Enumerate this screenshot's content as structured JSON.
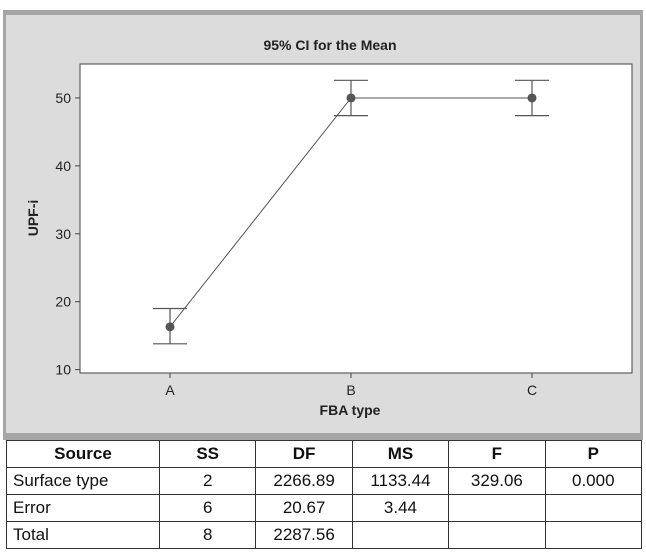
{
  "chart_data": {
    "type": "line",
    "title": "95% CI for the Mean",
    "xlabel": "FBA type",
    "ylabel": "UPF-i",
    "categories": [
      "A",
      "B",
      "C"
    ],
    "means": [
      16.3,
      50.0,
      50.0
    ],
    "ci_lower": [
      13.8,
      47.4,
      47.4
    ],
    "ci_upper": [
      19.0,
      52.6,
      52.6
    ],
    "yticks": [
      10,
      20,
      30,
      40,
      50
    ],
    "ylim": [
      9.5,
      55
    ],
    "grid": false
  },
  "table": {
    "headers": [
      "Source",
      "SS",
      "DF",
      "MS",
      "F",
      "P"
    ],
    "rows": [
      [
        "Surface type",
        "2",
        "2266.89",
        "1133.44",
        "329.06",
        "0.000"
      ],
      [
        "Error",
        "6",
        "20.67",
        "3.44",
        "",
        ""
      ],
      [
        "Total",
        "8",
        "2287.56",
        "",
        "",
        ""
      ]
    ]
  }
}
